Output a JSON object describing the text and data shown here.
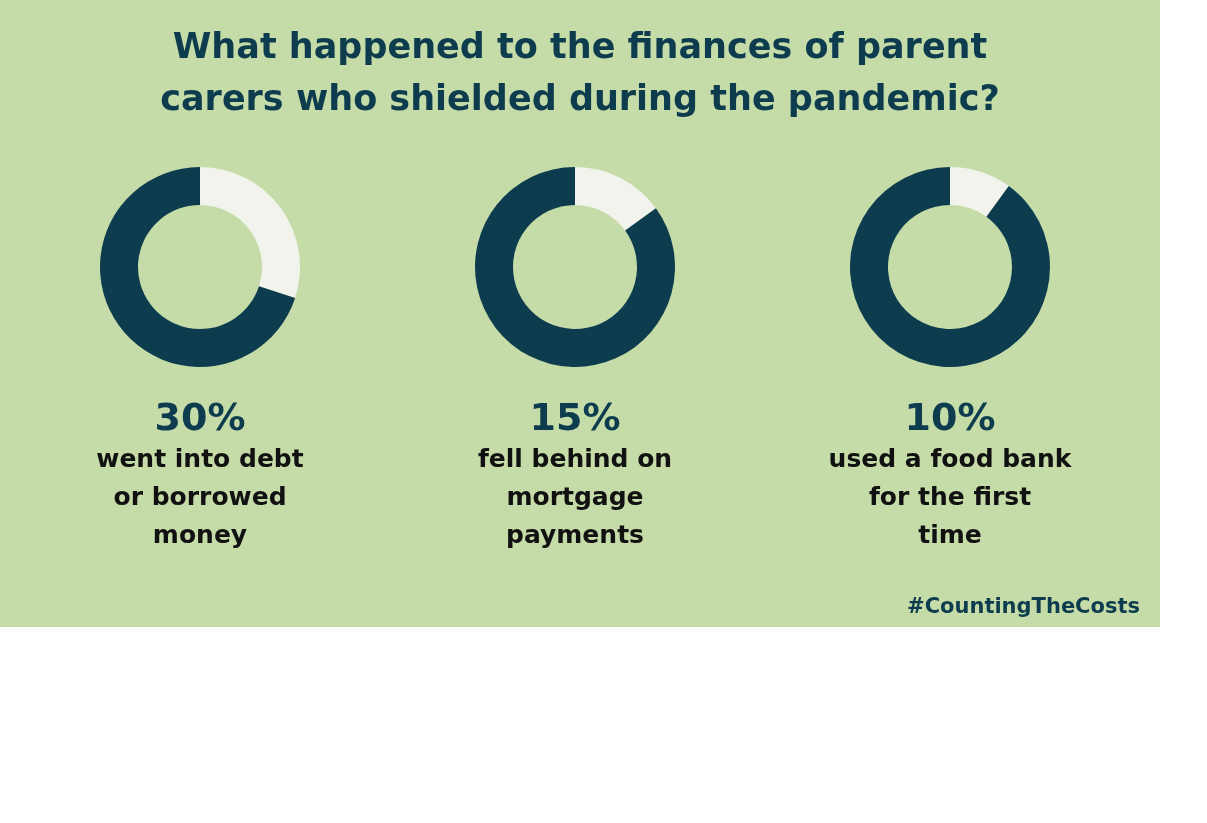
{
  "chart_data": [
    {
      "type": "donut",
      "title": "30%",
      "subtitle": "went into debt or borrowed money",
      "categories": [
        null,
        null
      ],
      "values": [
        30,
        70
      ],
      "colors": [
        "#f2f3ec",
        "#0c3c4e"
      ],
      "annotations": [
        "What happened to the finances of parent carers who shielded during the pandemic?"
      ],
      "legend": false
    },
    {
      "type": "donut",
      "title": "15%",
      "subtitle": "fell behind on mortgage payments",
      "categories": [
        null,
        null
      ],
      "values": [
        15,
        85
      ],
      "colors": [
        "#f2f3ec",
        "#0c3c4e"
      ],
      "legend": false
    },
    {
      "type": "donut",
      "title": "10%",
      "subtitle": "used a food bank for the first time",
      "categories": [
        null,
        null
      ],
      "values": [
        10,
        90
      ],
      "colors": [
        "#f2f3ec",
        "#0c3c4e"
      ],
      "annotations": [
        "#CountingTheCosts"
      ],
      "legend": false
    }
  ]
}
